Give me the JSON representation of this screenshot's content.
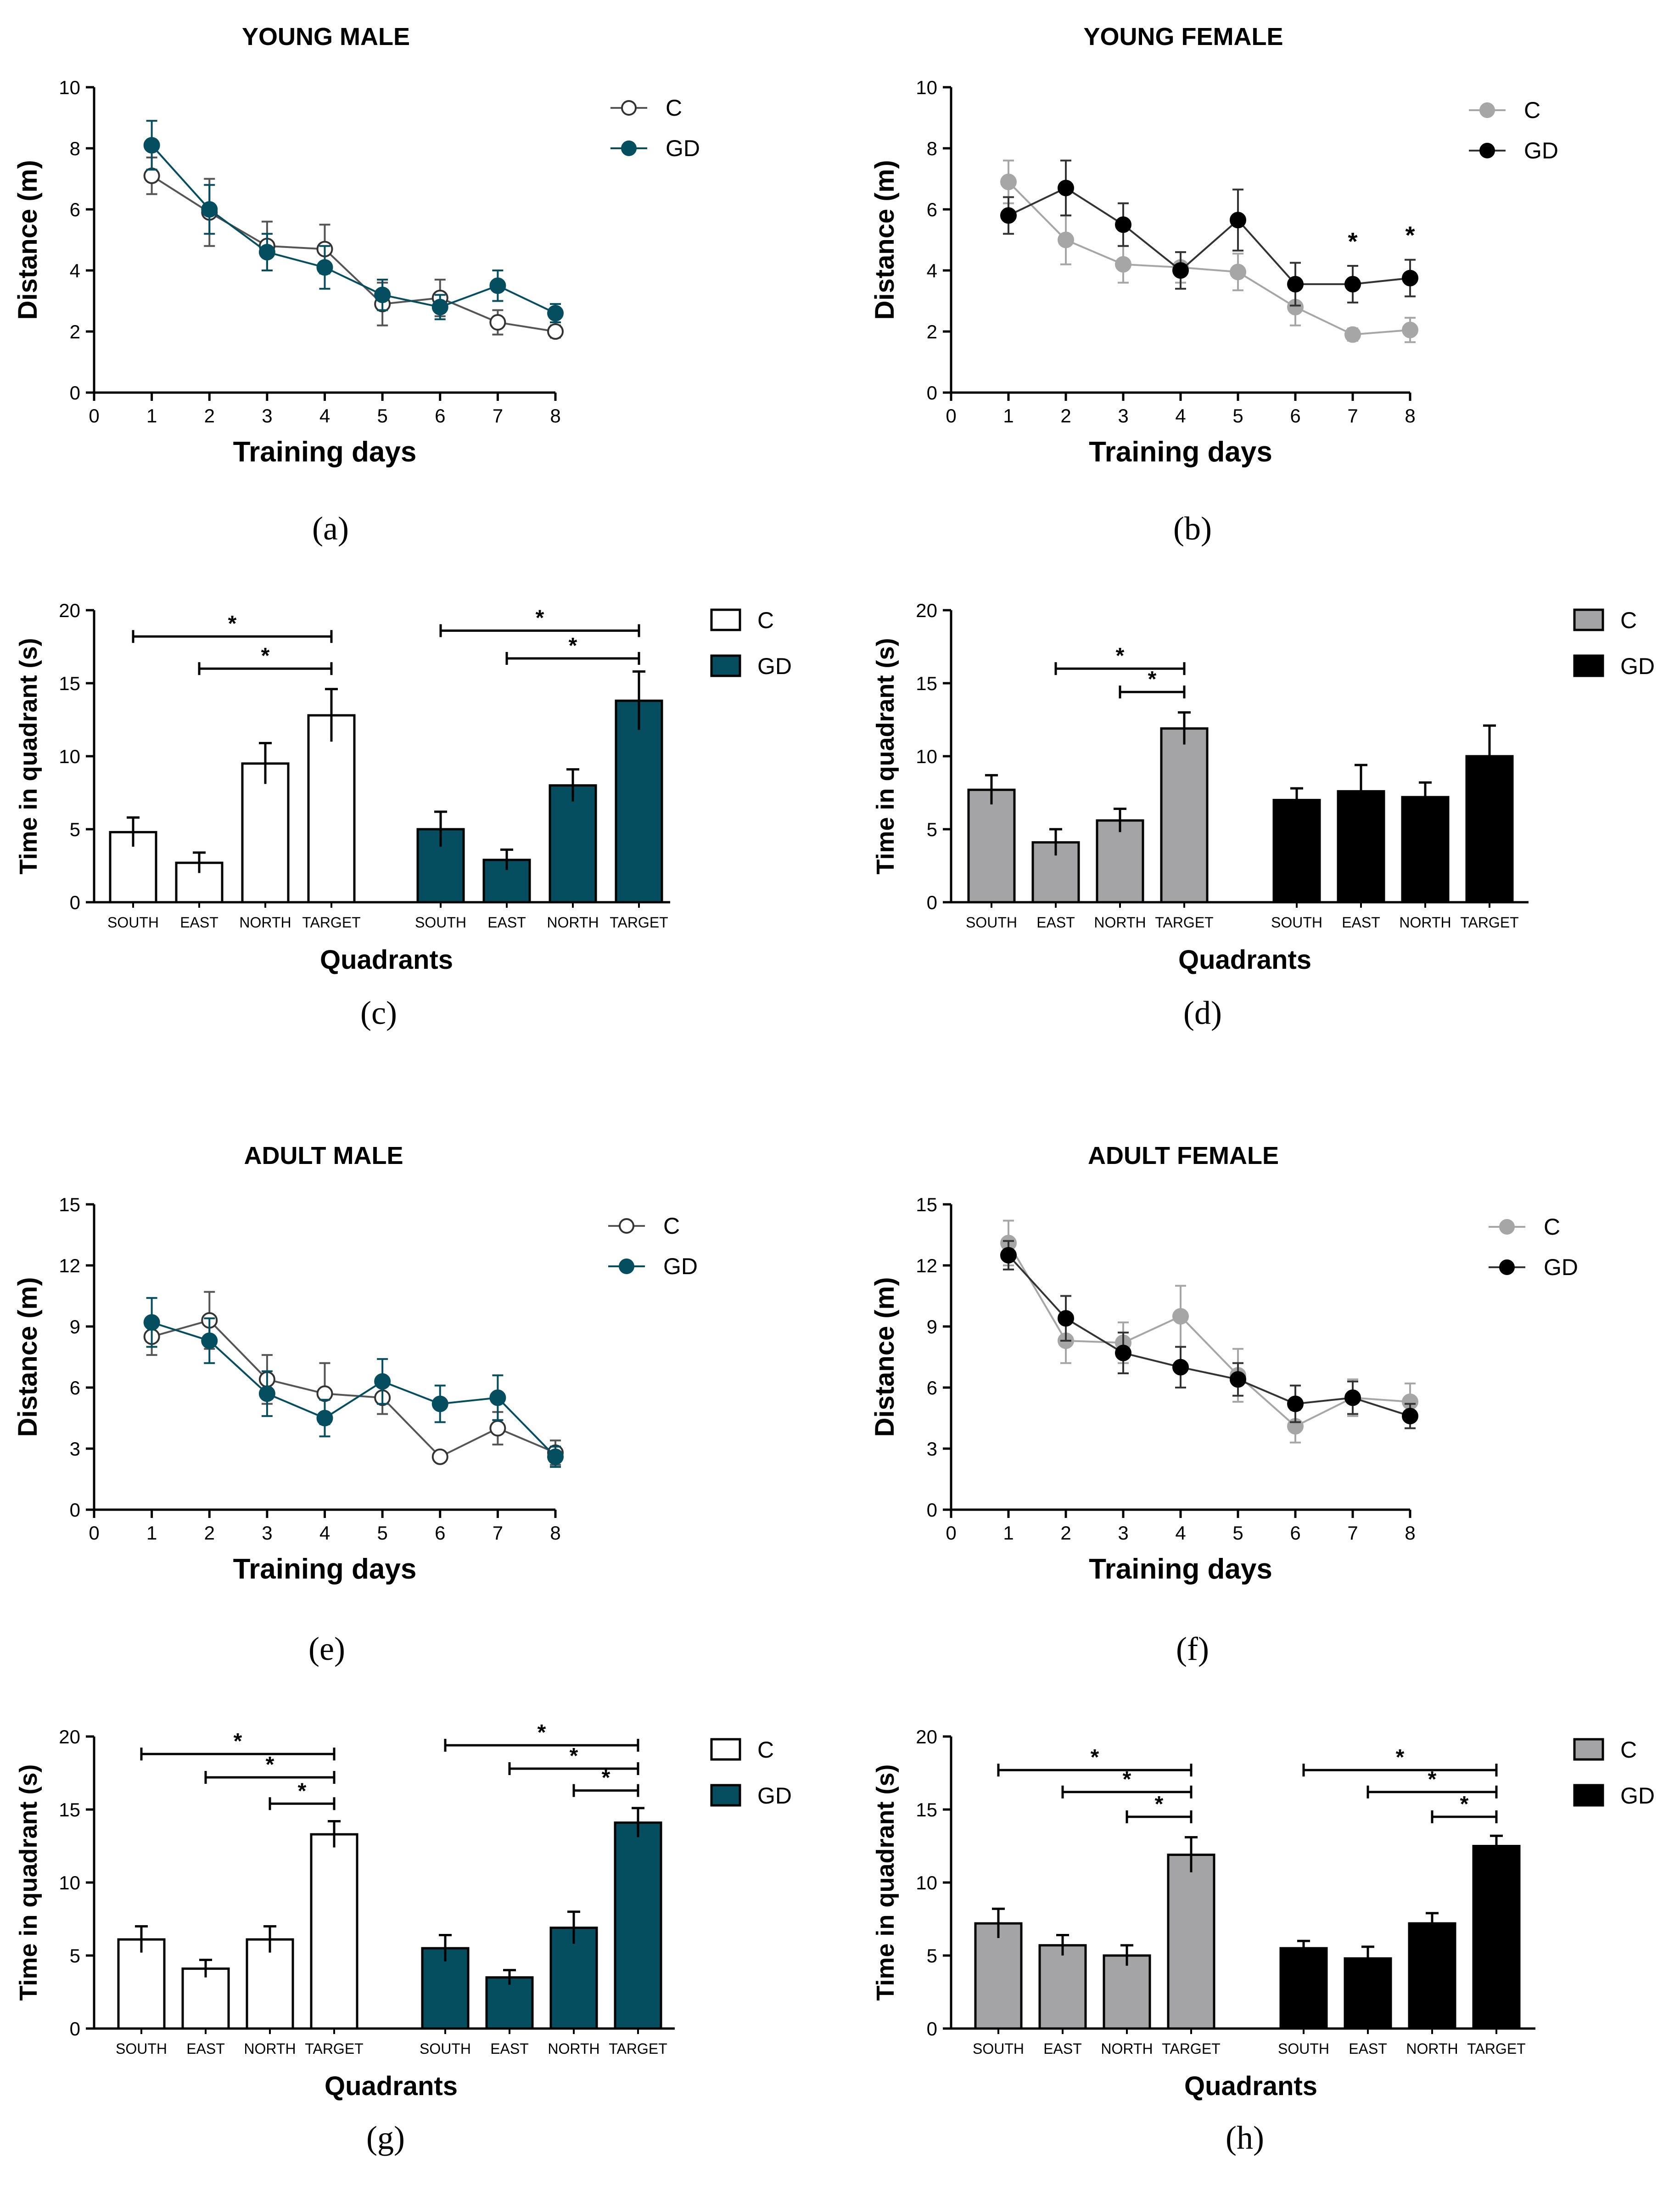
{
  "colors": {
    "C_young_male": "#ffffff",
    "GD_male": "#044e60",
    "C_female": "#a6a6a6",
    "GD_female": "#000000",
    "axis": "#000000",
    "bar_gray": "#a4a4a6"
  },
  "chart_data": [
    {
      "panel": "a",
      "caption": "(a)",
      "type": "line",
      "title": "YOUNG MALE",
      "xlabel": "Training days",
      "ylabel": "Distance (m)",
      "xlim": [
        0,
        8
      ],
      "ylim": [
        0,
        10
      ],
      "xticks": [
        0,
        1,
        2,
        3,
        4,
        5,
        6,
        7,
        8
      ],
      "yticks": [
        0,
        2,
        4,
        6,
        8,
        10
      ],
      "x": [
        1,
        2,
        3,
        4,
        5,
        6,
        7,
        8
      ],
      "series": [
        {
          "name": "C",
          "style": "C_open",
          "values": [
            7.1,
            5.9,
            4.8,
            4.7,
            2.9,
            3.1,
            2.3,
            2.0
          ],
          "errors": [
            0.6,
            1.1,
            0.8,
            0.8,
            0.7,
            0.6,
            0.4,
            0.2
          ]
        },
        {
          "name": "GD",
          "style": "GD_teal",
          "values": [
            8.1,
            6.0,
            4.6,
            4.1,
            3.2,
            2.8,
            3.5,
            2.6
          ],
          "errors": [
            0.8,
            0.8,
            0.6,
            0.7,
            0.5,
            0.4,
            0.5,
            0.3
          ]
        }
      ],
      "significance": []
    },
    {
      "panel": "b",
      "caption": "(b)",
      "type": "line",
      "title": "YOUNG FEMALE",
      "xlabel": "Training days",
      "ylabel": "Distance (m)",
      "xlim": [
        0,
        8
      ],
      "ylim": [
        0,
        10
      ],
      "xticks": [
        0,
        1,
        2,
        3,
        4,
        5,
        6,
        7,
        8
      ],
      "yticks": [
        0,
        2,
        4,
        6,
        8,
        10
      ],
      "x": [
        1,
        2,
        3,
        4,
        5,
        6,
        7,
        8
      ],
      "series": [
        {
          "name": "C",
          "style": "C_gray",
          "values": [
            6.9,
            5.0,
            4.2,
            4.1,
            3.95,
            2.8,
            1.9,
            2.05
          ],
          "errors": [
            0.7,
            0.8,
            0.6,
            0.5,
            0.6,
            0.6,
            0.2,
            0.4
          ]
        },
        {
          "name": "GD",
          "style": "GD_black",
          "values": [
            5.8,
            6.7,
            5.5,
            4.0,
            5.65,
            3.55,
            3.55,
            3.75
          ],
          "errors": [
            0.6,
            0.9,
            0.7,
            0.6,
            1.0,
            0.7,
            0.6,
            0.6
          ]
        }
      ],
      "significance": [
        {
          "label": "*",
          "x": 7
        },
        {
          "label": "*",
          "x": 8
        }
      ]
    },
    {
      "panel": "c",
      "caption": "(c)",
      "type": "bar",
      "xlabel": "Quadrants",
      "ylabel": "Time in quadrant (s)",
      "ylim": [
        0,
        20
      ],
      "yticks": [
        0,
        5,
        10,
        15,
        20
      ],
      "categories": [
        "SOUTH",
        "EAST",
        "NORTH",
        "TARGET"
      ],
      "series": [
        {
          "name": "C",
          "style": "C_open",
          "values": [
            4.8,
            2.7,
            9.5,
            12.8
          ],
          "errors": [
            1.0,
            0.7,
            1.4,
            1.8
          ]
        },
        {
          "name": "GD",
          "style": "GD_teal",
          "values": [
            5.0,
            2.9,
            8.0,
            13.8
          ],
          "errors": [
            1.2,
            0.7,
            1.1,
            2.0
          ]
        }
      ],
      "significance": [
        {
          "series": 0,
          "from": 0,
          "to": 3,
          "label": "*",
          "y": 18.2
        },
        {
          "series": 0,
          "from": 1,
          "to": 3,
          "label": "*",
          "y": 16.0
        },
        {
          "series": 1,
          "from": 0,
          "to": 3,
          "label": "*",
          "y": 18.6
        },
        {
          "series": 1,
          "from": 1,
          "to": 3,
          "label": "*",
          "y": 16.7
        }
      ]
    },
    {
      "panel": "d",
      "caption": "(d)",
      "type": "bar",
      "xlabel": "Quadrants",
      "ylabel": "Time in quadrant (s)",
      "ylim": [
        0,
        20
      ],
      "yticks": [
        0,
        5,
        10,
        15,
        20
      ],
      "categories": [
        "SOUTH",
        "EAST",
        "NORTH",
        "TARGET"
      ],
      "series": [
        {
          "name": "C",
          "style": "C_bar_gray",
          "values": [
            7.7,
            4.1,
            5.6,
            11.9
          ],
          "errors": [
            1.0,
            0.9,
            0.8,
            1.1
          ]
        },
        {
          "name": "GD",
          "style": "GD_black",
          "values": [
            7.0,
            7.6,
            7.2,
            10.0
          ],
          "errors": [
            0.8,
            1.8,
            1.0,
            2.1
          ]
        }
      ],
      "significance": [
        {
          "series": 0,
          "from": 1,
          "to": 3,
          "label": "*",
          "y": 16.0
        },
        {
          "series": 0,
          "from": 2,
          "to": 3,
          "label": "*",
          "y": 14.4
        }
      ]
    },
    {
      "panel": "e",
      "caption": "(e)",
      "type": "line",
      "title": "ADULT MALE",
      "xlabel": "Training days",
      "ylabel": "Distance (m)",
      "xlim": [
        0,
        8
      ],
      "ylim": [
        0,
        15
      ],
      "xticks": [
        0,
        1,
        2,
        3,
        4,
        5,
        6,
        7,
        8
      ],
      "yticks": [
        0,
        3,
        6,
        9,
        12,
        15
      ],
      "x": [
        1,
        2,
        3,
        4,
        5,
        6,
        7,
        8
      ],
      "series": [
        {
          "name": "C",
          "style": "C_open",
          "values": [
            8.5,
            9.3,
            6.4,
            5.7,
            5.5,
            2.6,
            4.0,
            2.8
          ],
          "errors": [
            0.9,
            1.4,
            1.2,
            1.5,
            0.8,
            0.1,
            0.8,
            0.6
          ]
        },
        {
          "name": "GD",
          "style": "GD_teal",
          "values": [
            9.2,
            8.3,
            5.7,
            4.5,
            6.3,
            5.2,
            5.5,
            2.6
          ],
          "errors": [
            1.2,
            1.1,
            1.1,
            0.9,
            1.1,
            0.9,
            1.1,
            0.5
          ]
        }
      ],
      "significance": []
    },
    {
      "panel": "f",
      "caption": "(f)",
      "type": "line",
      "title": "ADULT FEMALE",
      "xlabel": "Training days",
      "ylabel": "Distance (m)",
      "xlim": [
        0,
        8
      ],
      "ylim": [
        0,
        15
      ],
      "xticks": [
        0,
        1,
        2,
        3,
        4,
        5,
        6,
        7,
        8
      ],
      "yticks": [
        0,
        3,
        6,
        9,
        12,
        15
      ],
      "x": [
        1,
        2,
        3,
        4,
        5,
        6,
        7,
        8
      ],
      "series": [
        {
          "name": "C",
          "style": "C_gray",
          "values": [
            13.1,
            8.3,
            8.2,
            9.5,
            6.6,
            4.1,
            5.5,
            5.3
          ],
          "errors": [
            1.1,
            1.1,
            1.0,
            1.5,
            1.3,
            0.8,
            0.9,
            0.9
          ]
        },
        {
          "name": "GD",
          "style": "GD_black",
          "values": [
            12.5,
            9.4,
            7.7,
            7.0,
            6.4,
            5.2,
            5.5,
            4.6
          ],
          "errors": [
            0.7,
            1.1,
            1.0,
            1.0,
            0.8,
            0.9,
            0.8,
            0.6
          ]
        }
      ],
      "significance": []
    },
    {
      "panel": "g",
      "caption": "(g)",
      "type": "bar",
      "xlabel": "Quadrants",
      "ylabel": "Time in quadrant (s)",
      "ylim": [
        0,
        20
      ],
      "yticks": [
        0,
        5,
        10,
        15,
        20
      ],
      "categories": [
        "SOUTH",
        "EAST",
        "NORTH",
        "TARGET"
      ],
      "series": [
        {
          "name": "C",
          "style": "C_open",
          "values": [
            6.1,
            4.1,
            6.1,
            13.3
          ],
          "errors": [
            0.9,
            0.6,
            0.9,
            0.9
          ]
        },
        {
          "name": "GD",
          "style": "GD_teal",
          "values": [
            5.5,
            3.5,
            6.9,
            14.1
          ],
          "errors": [
            0.9,
            0.5,
            1.1,
            1.0
          ]
        }
      ],
      "significance": [
        {
          "series": 0,
          "from": 0,
          "to": 3,
          "label": "*",
          "y": 18.8
        },
        {
          "series": 0,
          "from": 1,
          "to": 3,
          "label": "*",
          "y": 17.2
        },
        {
          "series": 0,
          "from": 2,
          "to": 3,
          "label": "*",
          "y": 15.4
        },
        {
          "series": 1,
          "from": 0,
          "to": 3,
          "label": "*",
          "y": 19.4
        },
        {
          "series": 1,
          "from": 1,
          "to": 3,
          "label": "*",
          "y": 17.8
        },
        {
          "series": 1,
          "from": 2,
          "to": 3,
          "label": "*",
          "y": 16.3
        }
      ]
    },
    {
      "panel": "h",
      "caption": "(h)",
      "type": "bar",
      "xlabel": "Quadrants",
      "ylabel": "Time in quadrant (s)",
      "ylim": [
        0,
        20
      ],
      "yticks": [
        0,
        5,
        10,
        15,
        20
      ],
      "categories": [
        "SOUTH",
        "EAST",
        "NORTH",
        "TARGET"
      ],
      "series": [
        {
          "name": "C",
          "style": "C_bar_gray",
          "values": [
            7.2,
            5.7,
            5.0,
            11.9
          ],
          "errors": [
            1.0,
            0.7,
            0.7,
            1.2
          ]
        },
        {
          "name": "GD",
          "style": "GD_black",
          "values": [
            5.5,
            4.8,
            7.2,
            12.5
          ],
          "errors": [
            0.5,
            0.8,
            0.7,
            0.7
          ]
        }
      ],
      "significance": [
        {
          "series": 0,
          "from": 0,
          "to": 3,
          "label": "*",
          "y": 17.7
        },
        {
          "series": 0,
          "from": 1,
          "to": 3,
          "label": "*",
          "y": 16.2
        },
        {
          "series": 0,
          "from": 2,
          "to": 3,
          "label": "*",
          "y": 14.5
        },
        {
          "series": 1,
          "from": 0,
          "to": 3,
          "label": "*",
          "y": 17.7
        },
        {
          "series": 1,
          "from": 1,
          "to": 3,
          "label": "*",
          "y": 16.2
        },
        {
          "series": 1,
          "from": 2,
          "to": 3,
          "label": "*",
          "y": 14.5
        }
      ]
    }
  ]
}
